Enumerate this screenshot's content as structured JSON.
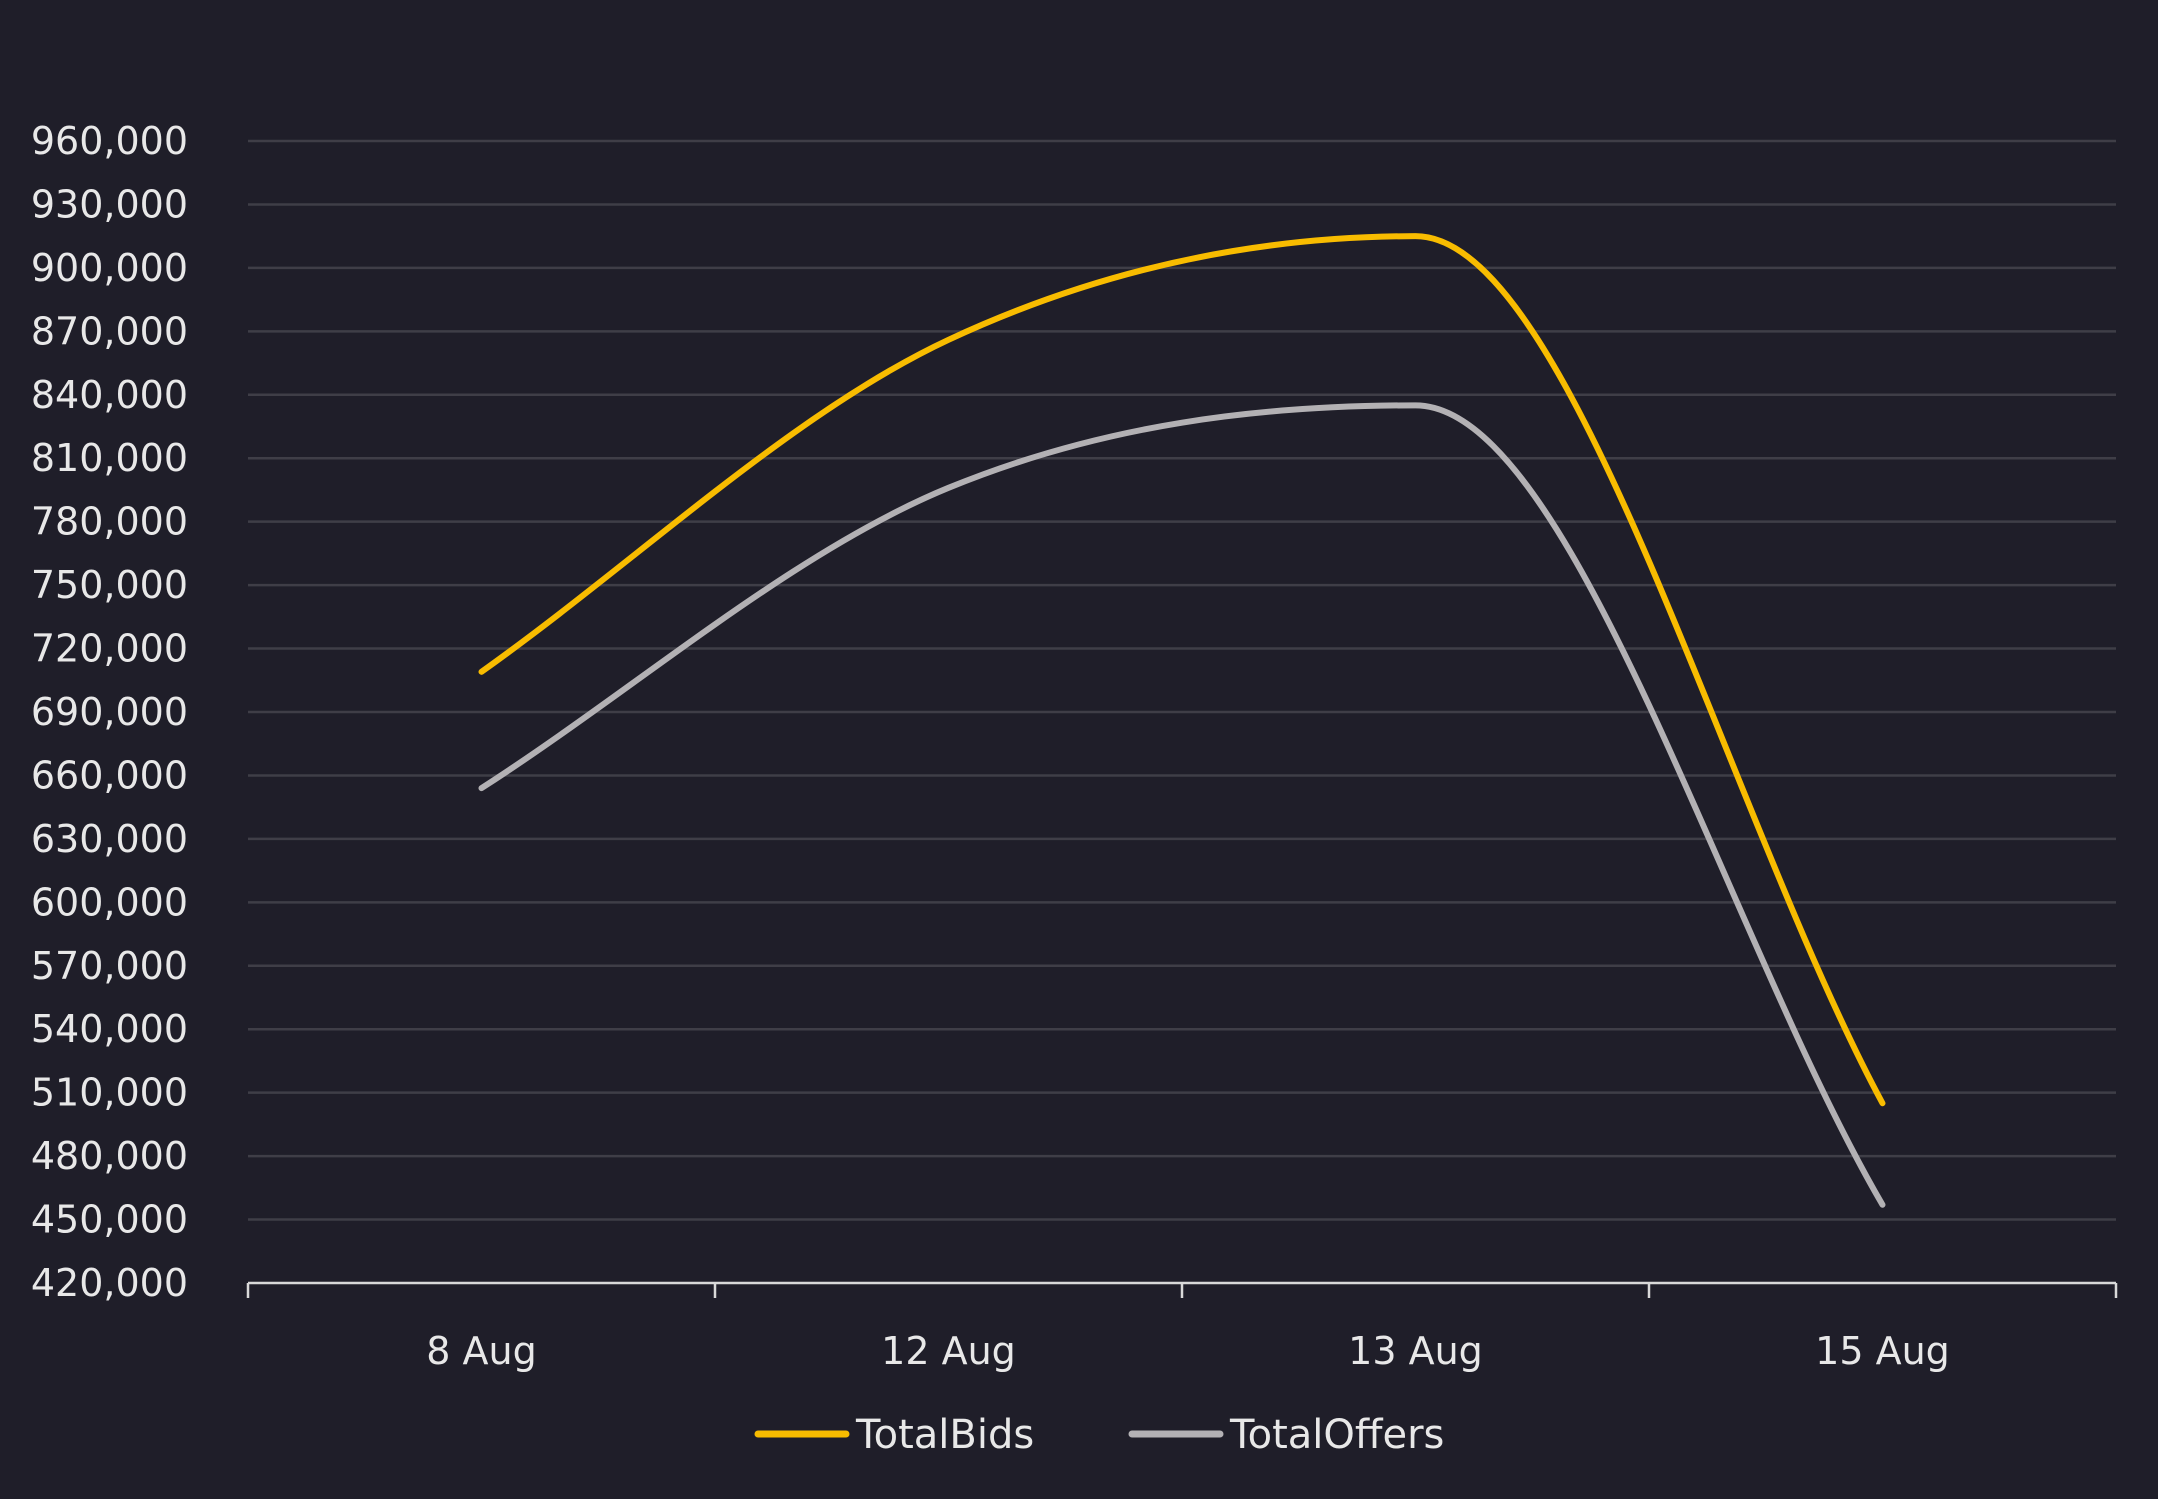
{
  "chart_data": {
    "type": "line",
    "title": "",
    "xlabel": "",
    "ylabel": "",
    "categories": [
      "8 Aug",
      "12 Aug",
      "13 Aug",
      "15 Aug"
    ],
    "ylim": [
      420000,
      960000
    ],
    "yticks": [
      420000,
      450000,
      480000,
      510000,
      540000,
      570000,
      600000,
      630000,
      660000,
      690000,
      720000,
      750000,
      780000,
      810000,
      840000,
      870000,
      900000,
      930000,
      960000
    ],
    "ytick_labels": [
      "420,000",
      "450,000",
      "480,000",
      "510,000",
      "540,000",
      "570,000",
      "600,000",
      "630,000",
      "660,000",
      "690,000",
      "720,000",
      "750,000",
      "780,000",
      "810,000",
      "840,000",
      "870,000",
      "900,000",
      "930,000",
      "960,000"
    ],
    "grid": true,
    "smooth": true,
    "legend_position": "bottom",
    "series": [
      {
        "name": "TotalBids",
        "color": "#f8bc00",
        "values": [
          709000,
          866000,
          915000,
          505000
        ]
      },
      {
        "name": "TotalOffers",
        "color": "#b3b1b4",
        "values": [
          654000,
          796000,
          835000,
          457000
        ]
      }
    ]
  }
}
